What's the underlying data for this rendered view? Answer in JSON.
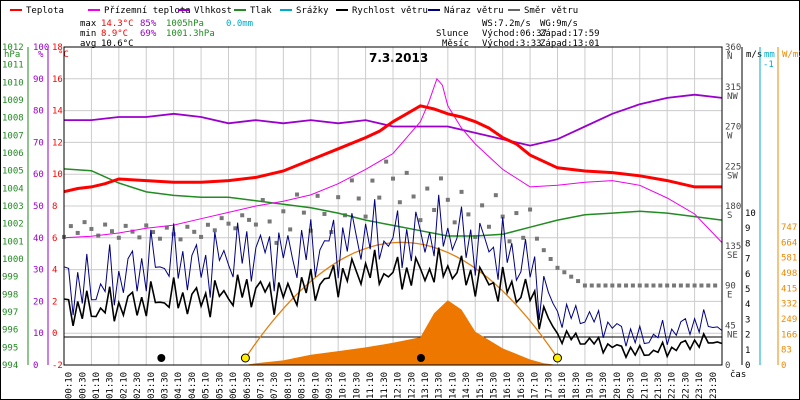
{
  "chart_data": {
    "type": "line",
    "title": "7.3.2013",
    "legend": [
      {
        "label": "Teplota",
        "color": "#ff0000"
      },
      {
        "label": "Přízemní teplota",
        "color": "#ee00ee"
      },
      {
        "label": "Vlhkost",
        "color": "#9900cc"
      },
      {
        "label": "Tlak",
        "color": "#228b22"
      },
      {
        "label": "Srážky",
        "color": "#00aacc"
      },
      {
        "label": "Rychlost větru",
        "color": "#000000"
      },
      {
        "label": "Náraz větru",
        "color": "#000080"
      },
      {
        "label": "Směr větru",
        "color": "#666666"
      }
    ],
    "stats": {
      "max_label": "max",
      "max_temp": "14.3°C",
      "max_hum": "85%",
      "max_press": "1005hPa",
      "max_rain": "0.0mm",
      "min_label": "min",
      "min_temp": "8.9°C",
      "min_hum": "69%",
      "min_press": "1001.3hPa",
      "avg_label": "avg",
      "avg_temp": "10.6°C"
    },
    "wind_info": {
      "ws": "WS:7.2m/s",
      "wg": "WG:9m/s"
    },
    "sun_info": {
      "label": "Slunce",
      "rise": "Východ:06:37",
      "set": "Západ:17:59"
    },
    "moon_info": {
      "label": "Měsíc",
      "rise": "Východ:3:33",
      "set": "Západ:13:01"
    },
    "axes": {
      "hpa_label": "hPa",
      "pct_label": "%",
      "c_label": "°C",
      "deg_label": "°",
      "ms_label": "m/s",
      "mm_label": "mm",
      "wm2_label": "W/m2",
      "x_label": "čas",
      "hpa_ticks": [
        "1012",
        "1011",
        "1010",
        "1009",
        "1008",
        "1007",
        "1006",
        "1005",
        "1004",
        "1003",
        "1002",
        "1001",
        "1000",
        "999",
        "998",
        "997",
        "996",
        "995",
        "994"
      ],
      "pct_ticks": [
        "100",
        "90",
        "80",
        "70",
        "60",
        "50",
        "40",
        "30",
        "20",
        "10",
        "0"
      ],
      "c_ticks": [
        "18",
        "16",
        "14",
        "12",
        "10",
        "8",
        "6",
        "4",
        "2",
        "0",
        "-2"
      ],
      "dir_ticks": [
        [
          "360",
          "N"
        ],
        [
          "315",
          "NW"
        ],
        [
          "270",
          "W"
        ],
        [
          "225",
          "SW"
        ],
        [
          "180",
          "S"
        ],
        [
          "135",
          "SE"
        ],
        [
          "90",
          "E"
        ],
        [
          "45",
          "NE"
        ],
        [
          "0",
          ""
        ]
      ],
      "ms_ticks": [
        "10",
        "9",
        "8",
        "7",
        "6",
        "5",
        "4",
        "3",
        "2",
        "1",
        "0"
      ],
      "mm_ticks": [
        "-1"
      ],
      "solar_ticks": [
        "747",
        "664",
        "581",
        "498",
        "415",
        "332",
        "249",
        "166",
        "83",
        "0"
      ],
      "time_ticks": [
        "00:10",
        "00:30",
        "01:10",
        "01:30",
        "02:10",
        "02:30",
        "03:10",
        "03:30",
        "04:10",
        "04:30",
        "05:10",
        "05:30",
        "06:10",
        "06:30",
        "07:10",
        "07:30",
        "08:10",
        "08:30",
        "09:10",
        "09:30",
        "10:10",
        "10:30",
        "11:10",
        "11:30",
        "12:10",
        "12:30",
        "13:10",
        "13:30",
        "14:10",
        "14:30",
        "15:10",
        "15:30",
        "16:10",
        "16:30",
        "17:10",
        "17:30",
        "18:10",
        "18:30",
        "19:10",
        "19:30",
        "20:10",
        "20:30",
        "21:10",
        "21:30",
        "22:10",
        "22:30",
        "23:10",
        "23:30"
      ]
    },
    "y_ranges": {
      "hpa": [
        994,
        1012
      ],
      "pct": [
        0,
        100
      ],
      "c": [
        -2,
        18
      ],
      "deg": [
        0,
        360
      ],
      "ms": [
        0,
        10
      ],
      "wm2": [
        0,
        747
      ]
    },
    "series": [
      {
        "name": "Teplota",
        "unit": "°C",
        "hours": [
          0,
          0.5,
          1,
          1.5,
          2,
          3,
          4,
          5,
          6,
          7,
          8,
          9,
          10,
          11,
          11.5,
          12,
          12.5,
          13,
          13.5,
          14,
          14.5,
          15,
          15.5,
          16,
          16.5,
          17,
          18,
          19,
          20,
          21,
          22,
          23,
          24
        ],
        "values": [
          8.9,
          9.1,
          9.2,
          9.4,
          9.7,
          9.6,
          9.5,
          9.5,
          9.6,
          9.8,
          10.2,
          10.9,
          11.6,
          12.3,
          12.7,
          13.3,
          13.8,
          14.3,
          14.1,
          13.8,
          13.6,
          13.3,
          12.9,
          12.3,
          11.9,
          11.2,
          10.4,
          10.2,
          10.1,
          9.9,
          9.6,
          9.2,
          9.2
        ]
      },
      {
        "name": "Přízemní teplota",
        "unit": "°C",
        "hours": [
          0,
          1,
          2,
          3,
          4,
          5,
          6,
          7,
          8,
          9,
          10,
          11,
          12,
          12.5,
          13,
          13.3,
          13.6,
          13.8,
          14,
          14.5,
          15,
          16,
          17,
          18,
          19,
          20,
          21,
          22,
          23,
          24
        ],
        "values": [
          6.0,
          6.1,
          6.3,
          6.6,
          6.8,
          7.2,
          7.6,
          8.0,
          8.3,
          8.7,
          9.4,
          10.3,
          11.3,
          12.3,
          13.3,
          14.5,
          16.0,
          15.6,
          14.3,
          12.9,
          11.9,
          10.3,
          9.2,
          9.3,
          9.5,
          9.6,
          9.3,
          8.5,
          7.5,
          5.7
        ]
      },
      {
        "name": "Vlhkost",
        "unit": "%",
        "hours": [
          0,
          1,
          2,
          3,
          4,
          5,
          6,
          7,
          8,
          9,
          10,
          11,
          12,
          13,
          14,
          15,
          16,
          17,
          18,
          19,
          20,
          21,
          22,
          23,
          24
        ],
        "values": [
          77,
          77,
          78,
          78,
          79,
          78,
          76,
          77,
          76,
          77,
          76,
          77,
          75,
          75,
          75,
          73,
          71,
          69,
          71,
          75,
          79,
          82,
          84,
          85,
          84
        ]
      },
      {
        "name": "Tlak",
        "unit": "hPa",
        "hours": [
          0,
          1,
          2,
          3,
          4,
          5,
          6,
          7,
          8,
          9,
          10,
          11,
          12,
          13,
          14,
          15,
          16,
          17,
          18,
          19,
          20,
          21,
          22,
          23,
          24
        ],
        "values": [
          1005.1,
          1005.0,
          1004.3,
          1003.8,
          1003.6,
          1003.5,
          1003.5,
          1003.3,
          1003.1,
          1002.9,
          1002.6,
          1002.2,
          1001.9,
          1001.6,
          1001.3,
          1001.3,
          1001.4,
          1001.8,
          1002.2,
          1002.5,
          1002.6,
          1002.7,
          1002.6,
          1002.4,
          1002.2
        ]
      },
      {
        "name": "Rychlost větru",
        "unit": "m/s",
        "hours": [
          0,
          1,
          2,
          3,
          4,
          5,
          6,
          7,
          8,
          9,
          10,
          11,
          12,
          13,
          14,
          15,
          16,
          17,
          18,
          19,
          20,
          21,
          22,
          23,
          24
        ],
        "values": [
          3.8,
          3.6,
          3.9,
          4.2,
          4.4,
          4.3,
          4.7,
          5.0,
          4.6,
          5.2,
          5.8,
          6.3,
          6.0,
          6.1,
          6.4,
          5.7,
          5.2,
          4.6,
          2.0,
          1.6,
          1.2,
          0.8,
          1.0,
          1.5,
          1.6
        ]
      },
      {
        "name": "Náraz větru",
        "unit": "m/s",
        "hours": [
          0,
          1,
          2,
          3,
          4,
          5,
          6,
          7,
          8,
          9,
          10,
          11,
          12,
          13,
          14,
          15,
          16,
          17,
          18,
          19,
          20,
          21,
          22,
          23,
          24
        ],
        "values": [
          5.5,
          5.0,
          5.8,
          6.6,
          6.9,
          6.5,
          7.2,
          7.6,
          7.3,
          7.6,
          8.1,
          8.6,
          8.2,
          8.4,
          8.8,
          8.0,
          7.5,
          6.4,
          3.4,
          3.2,
          2.5,
          1.7,
          2.1,
          2.8,
          2.6
        ]
      },
      {
        "name": "Směr větru",
        "unit": "°",
        "hours": [
          0,
          1,
          2,
          3,
          4,
          5,
          6,
          7,
          8,
          9,
          10,
          11,
          12,
          13,
          14,
          15,
          16,
          17,
          18,
          19,
          20,
          21,
          22,
          23,
          24
        ],
        "values": [
          155,
          152,
          150,
          152,
          150,
          155,
          158,
          165,
          160,
          170,
          180,
          190,
          205,
          190,
          185,
          175,
          170,
          150,
          110,
          90,
          90,
          90,
          90,
          90,
          90
        ]
      },
      {
        "name": "Sluneční záření",
        "unit": "W/m2",
        "hours": [
          6.6,
          7,
          8,
          9,
          10,
          11,
          12,
          13,
          13.5,
          14,
          14.5,
          15,
          16,
          17,
          17.5,
          18
        ],
        "values": [
          0,
          10,
          25,
          55,
          75,
          95,
          120,
          150,
          280,
          350,
          300,
          180,
          90,
          30,
          10,
          0
        ]
      }
    ],
    "theoretical_solar_peak_hours": 12.3
  }
}
